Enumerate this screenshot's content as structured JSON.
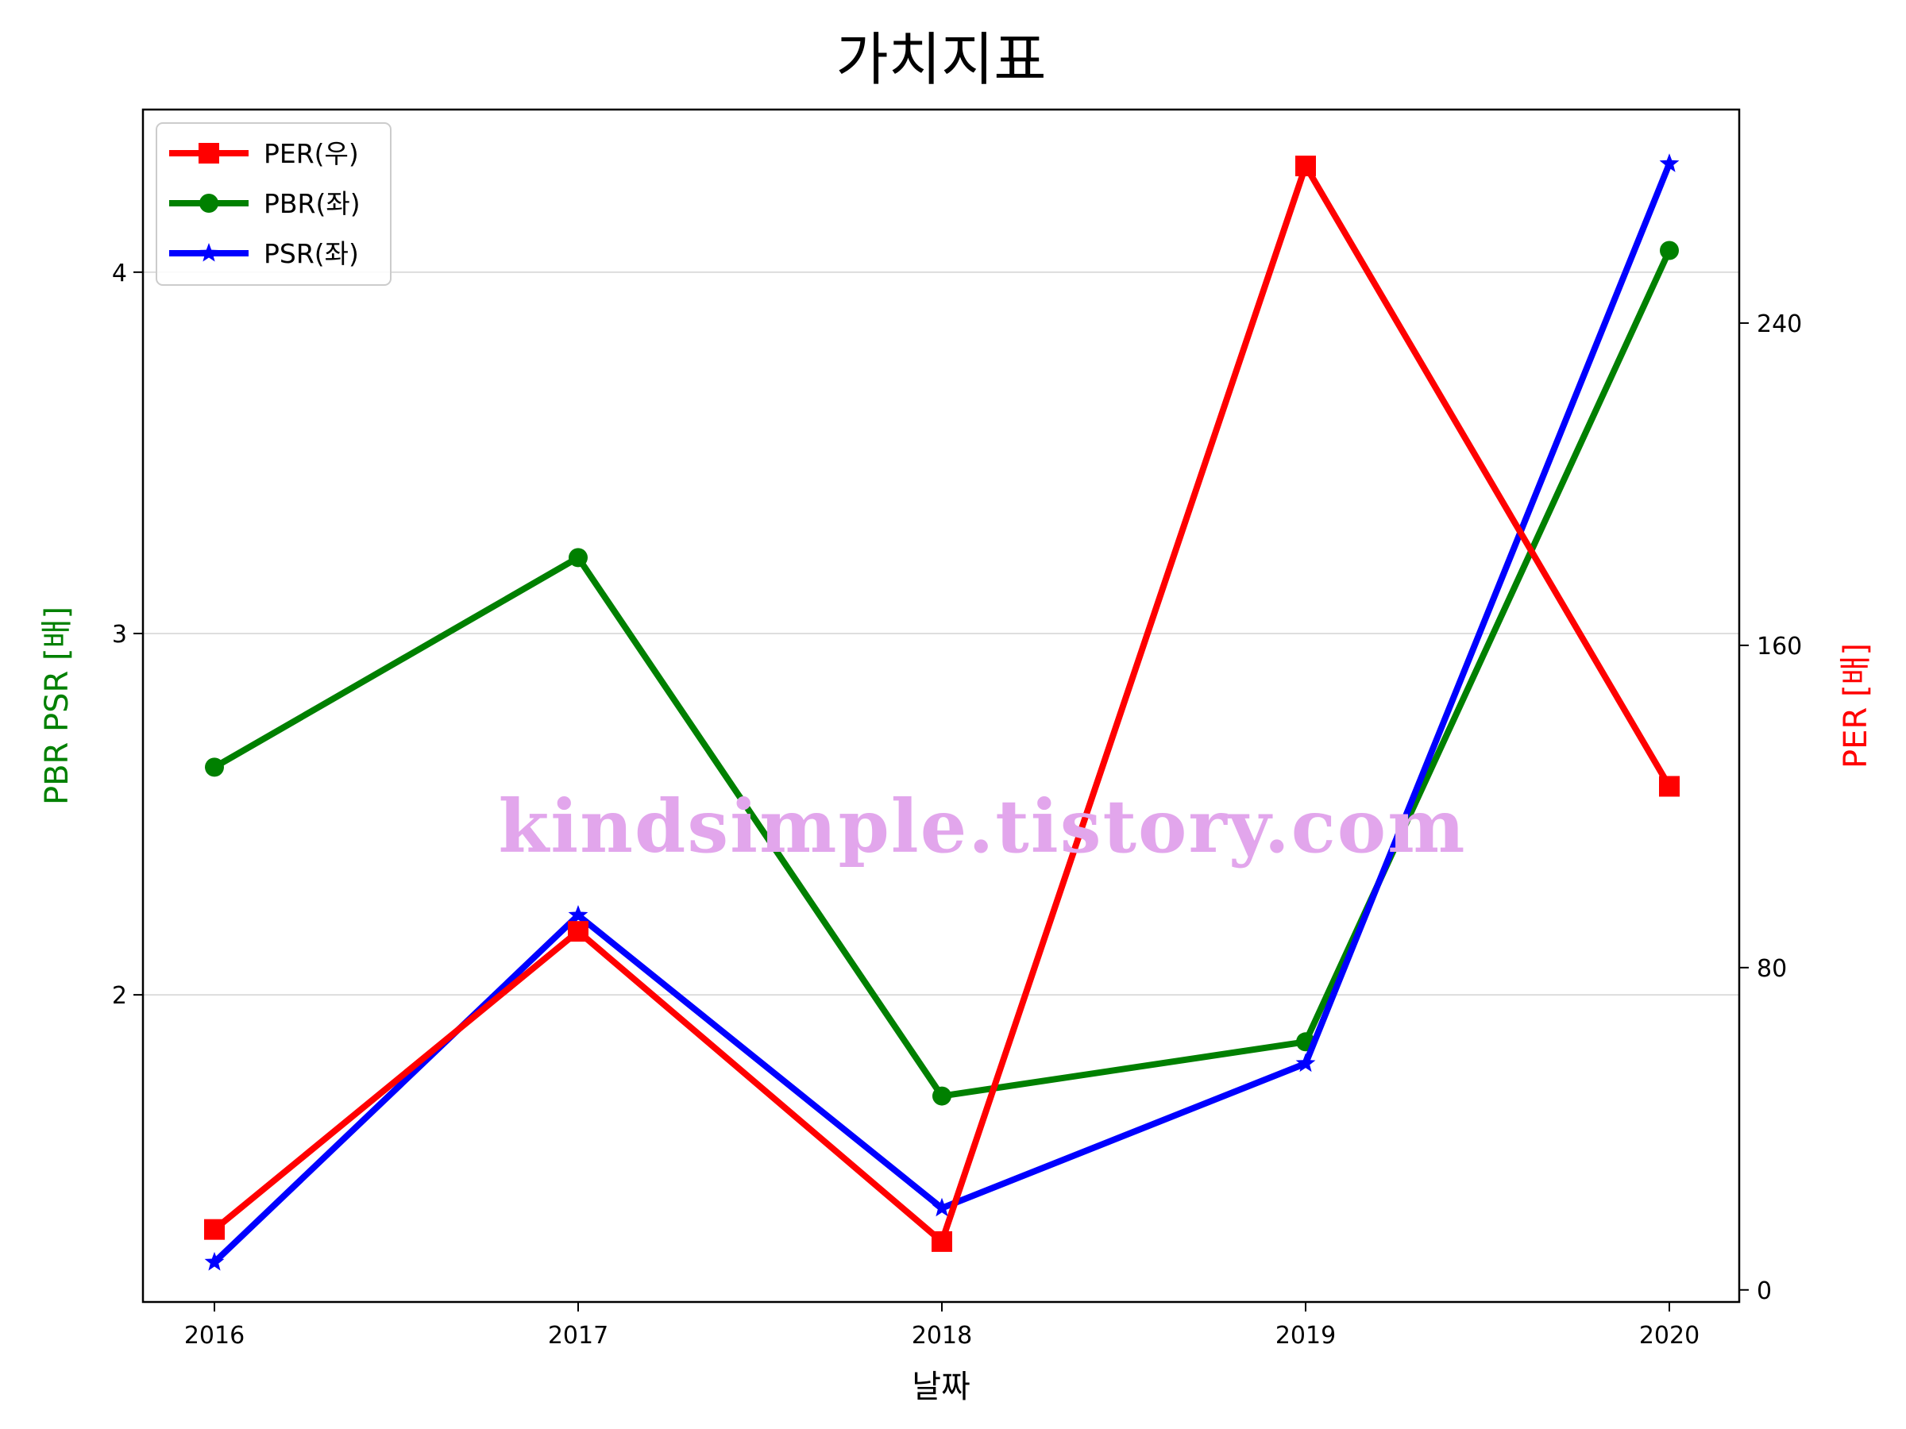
{
  "chart_data": {
    "type": "line",
    "title": "가치지표",
    "xlabel": "날짜",
    "ylabel_left": "PBR PSR [배]",
    "ylabel_right": "PER [배]",
    "categories": [
      "2016",
      "2017",
      "2018",
      "2019",
      "2020"
    ],
    "left_axis": {
      "range": [
        1.15,
        4.45
      ],
      "ticks": [
        2,
        3,
        4
      ]
    },
    "right_axis": {
      "range": [
        -3,
        293
      ],
      "ticks": [
        0,
        80,
        160,
        240
      ]
    },
    "grid": true,
    "legend_position": "top-left",
    "series": [
      {
        "name": "PER(우)",
        "axis": "right",
        "color": "#ff0000",
        "marker": "square",
        "values": [
          15,
          89,
          12,
          279,
          125
        ]
      },
      {
        "name": "PBR(좌)",
        "axis": "left",
        "color": "#008000",
        "marker": "circle",
        "values": [
          2.63,
          3.21,
          1.72,
          1.87,
          4.06
        ]
      },
      {
        "name": "PSR(좌)",
        "axis": "left",
        "color": "#0000ff",
        "marker": "star",
        "values": [
          1.26,
          2.22,
          1.41,
          1.81,
          4.3
        ]
      }
    ]
  },
  "watermark": "kindsimple.tistory.com"
}
